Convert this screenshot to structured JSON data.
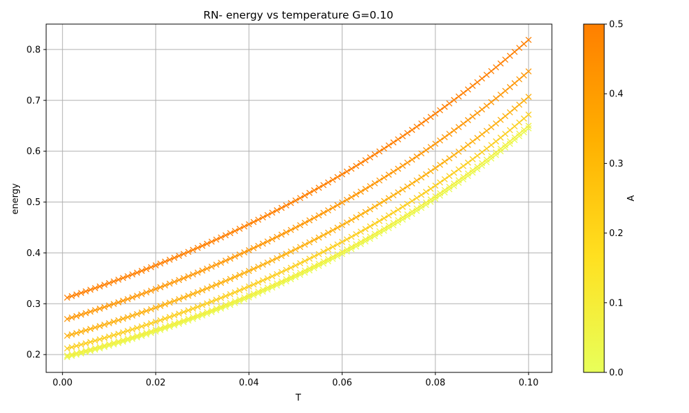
{
  "chart_data": {
    "type": "line",
    "title": "RN- energy vs temperature G=0.10",
    "xlabel": "T",
    "ylabel": "energy",
    "xlim": [
      -0.0035,
      0.105
    ],
    "ylim": [
      0.165,
      0.85
    ],
    "xticks": [
      0.0,
      0.02,
      0.04,
      0.06,
      0.08,
      0.1
    ],
    "xtick_labels": [
      "0.00",
      "0.02",
      "0.04",
      "0.06",
      "0.08",
      "0.10"
    ],
    "yticks": [
      0.2,
      0.3,
      0.4,
      0.5,
      0.6,
      0.7,
      0.8
    ],
    "ytick_labels": [
      "0.2",
      "0.3",
      "0.4",
      "0.5",
      "0.6",
      "0.7",
      "0.8"
    ],
    "grid": true,
    "marker": "x",
    "x_range": {
      "start": 0.001,
      "end": 0.1,
      "count": 100
    },
    "series": [
      {
        "A": 0.0,
        "color": "#e9fa50",
        "y_start": 0.195,
        "y_end": 0.645
      },
      {
        "A": 0.1,
        "color": "#f2f040",
        "y_start": 0.198,
        "y_end": 0.65
      },
      {
        "A": 0.2,
        "color": "#fccf20",
        "y_start": 0.212,
        "y_end": 0.672
      },
      {
        "A": 0.3,
        "color": "#fdb010",
        "y_start": 0.237,
        "y_end": 0.707
      },
      {
        "A": 0.4,
        "color": "#fe9808",
        "y_start": 0.27,
        "y_end": 0.757
      },
      {
        "A": 0.5,
        "color": "#ff7f00",
        "y_start": 0.312,
        "y_end": 0.819
      }
    ],
    "colorbar": {
      "label": "A",
      "range": [
        0.0,
        0.5
      ],
      "ticks": [
        0.0,
        0.1,
        0.2,
        0.3,
        0.4,
        0.5
      ],
      "tick_labels": [
        "0.0",
        "0.1",
        "0.2",
        "0.3",
        "0.4",
        "0.5"
      ],
      "colors": [
        "#e8ff5a",
        "#ffe020",
        "#ffb000",
        "#ff7f00"
      ]
    }
  }
}
